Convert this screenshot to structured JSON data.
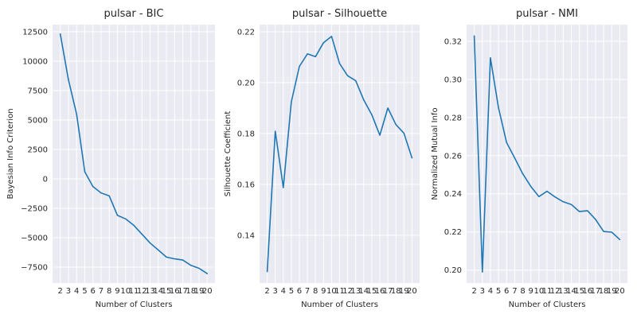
{
  "chart_data": [
    {
      "type": "line",
      "title": "pulsar - BIC",
      "xlabel": "Number of Clusters",
      "ylabel": "Bayesian Info Criterion",
      "x": [
        2,
        3,
        4,
        5,
        6,
        7,
        8,
        9,
        10,
        11,
        12,
        13,
        14,
        15,
        16,
        17,
        18,
        19,
        20
      ],
      "values": [
        12300,
        8400,
        5500,
        600,
        -650,
        -1200,
        -1450,
        -3100,
        -3400,
        -3950,
        -4700,
        -5450,
        -6050,
        -6650,
        -6800,
        -6900,
        -7350,
        -7600,
        -8050
      ],
      "ylim": [
        -8850,
        13100
      ],
      "yticks": [
        -7500,
        -5000,
        -2500,
        0,
        2500,
        5000,
        7500,
        10000,
        12500
      ],
      "ytick_labels": [
        "−7500",
        "−5000",
        "−2500",
        "0",
        "2500",
        "5000",
        "7500",
        "10000",
        "12500"
      ],
      "grid": true,
      "color": "#1f77b4"
    },
    {
      "type": "line",
      "title": "pulsar - Silhouette",
      "xlabel": "Number of Clusters",
      "ylabel": "Silhouette Coefficient",
      "x": [
        2,
        3,
        4,
        5,
        6,
        7,
        8,
        9,
        10,
        11,
        12,
        13,
        14,
        15,
        16,
        17,
        18,
        19,
        20
      ],
      "values": [
        0.1257,
        0.1809,
        0.1587,
        0.1925,
        0.2064,
        0.2113,
        0.2102,
        0.2157,
        0.2182,
        0.2075,
        0.2027,
        0.2008,
        0.1932,
        0.1874,
        0.1793,
        0.19,
        0.1835,
        0.1801,
        0.1704
      ],
      "ylim": [
        0.1212,
        0.2228
      ],
      "yticks": [
        0.14,
        0.16,
        0.18,
        0.2,
        0.22
      ],
      "ytick_labels": [
        "0.14",
        "0.16",
        "0.18",
        "0.20",
        "0.22"
      ],
      "grid": true,
      "color": "#1f77b4"
    },
    {
      "type": "line",
      "title": "pulsar - NMI",
      "xlabel": "Number of Clusters",
      "ylabel": "Normalized Mutual Info",
      "x": [
        2,
        3,
        4,
        5,
        6,
        7,
        8,
        9,
        10,
        11,
        12,
        13,
        14,
        15,
        16,
        17,
        18,
        19,
        20
      ],
      "values": [
        0.3228,
        0.199,
        0.3113,
        0.285,
        0.2669,
        0.2588,
        0.2505,
        0.2438,
        0.2385,
        0.2413,
        0.2383,
        0.2358,
        0.2344,
        0.2307,
        0.2311,
        0.2266,
        0.2202,
        0.2199,
        0.216
      ],
      "ylim": [
        0.1932,
        0.3287
      ],
      "yticks": [
        0.2,
        0.22,
        0.24,
        0.26,
        0.28,
        0.3,
        0.32
      ],
      "ytick_labels": [
        "0.20",
        "0.22",
        "0.24",
        "0.26",
        "0.28",
        "0.30",
        "0.32"
      ],
      "grid": true,
      "color": "#1f77b4"
    }
  ]
}
